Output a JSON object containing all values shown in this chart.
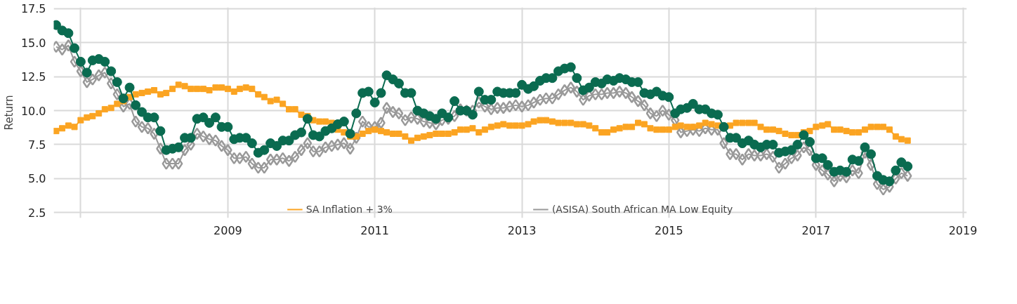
{
  "chart_data": {
    "type": "line",
    "ylabel": "Return",
    "x": [
      "2006-09",
      "2006-10",
      "2006-11",
      "2006-12",
      "2007-01",
      "2007-02",
      "2007-03",
      "2007-04",
      "2007-05",
      "2007-06",
      "2007-07",
      "2007-08",
      "2007-09",
      "2007-10",
      "2007-11",
      "2007-12",
      "2008-01",
      "2008-02",
      "2008-03",
      "2008-04",
      "2008-05",
      "2008-06",
      "2008-07",
      "2008-08",
      "2008-09",
      "2008-10",
      "2008-11",
      "2008-12",
      "2009-01",
      "2009-02",
      "2009-03",
      "2009-04",
      "2009-05",
      "2009-06",
      "2009-07",
      "2009-08",
      "2009-09",
      "2009-10",
      "2009-11",
      "2009-12",
      "2010-01",
      "2010-02",
      "2010-03",
      "2010-04",
      "2010-05",
      "2010-06",
      "2010-07",
      "2010-08",
      "2010-09",
      "2010-10",
      "2010-11",
      "2010-12",
      "2011-01",
      "2011-02",
      "2011-03",
      "2011-04",
      "2011-05",
      "2011-06",
      "2011-07",
      "2011-08",
      "2011-09",
      "2011-10",
      "2011-11",
      "2011-12",
      "2012-01",
      "2012-02",
      "2012-03",
      "2012-04",
      "2012-05",
      "2012-06",
      "2012-07",
      "2012-08",
      "2012-09",
      "2012-10",
      "2012-11",
      "2012-12",
      "2013-01",
      "2013-02",
      "2013-03",
      "2013-04",
      "2013-05",
      "2013-06",
      "2013-07",
      "2013-08",
      "2013-09",
      "2013-10",
      "2013-11",
      "2013-12",
      "2014-01",
      "2014-02",
      "2014-03",
      "2014-04",
      "2014-05",
      "2014-06",
      "2014-07",
      "2014-08",
      "2014-09",
      "2014-10",
      "2014-11",
      "2014-12",
      "2015-01",
      "2015-02",
      "2015-03",
      "2015-04",
      "2015-05",
      "2015-06",
      "2015-07",
      "2015-08",
      "2015-09",
      "2015-10",
      "2015-11",
      "2015-12",
      "2016-01",
      "2016-02",
      "2016-03",
      "2016-04",
      "2016-05",
      "2016-06",
      "2016-07",
      "2016-08",
      "2016-09",
      "2016-10",
      "2016-11",
      "2016-12",
      "2017-01",
      "2017-02",
      "2017-03",
      "2017-04",
      "2017-05",
      "2017-06",
      "2017-07",
      "2017-08",
      "2017-09",
      "2017-10",
      "2017-11",
      "2017-12",
      "2018-01",
      "2018-02",
      "2018-03",
      "2018-04"
    ],
    "xlim": [
      "2006-08-20",
      "2019-01-20"
    ],
    "xticks": [
      {
        "value": "2007-01-01",
        "label": null
      },
      {
        "value": "2009-01-01",
        "label": "2009"
      },
      {
        "value": "2011-01-01",
        "label": "2011"
      },
      {
        "value": "2013-01-01",
        "label": "2013"
      },
      {
        "value": "2015-01-01",
        "label": "2015"
      },
      {
        "value": "2017-01-01",
        "label": "2017"
      },
      {
        "value": "2019-01-01",
        "label": "2019"
      }
    ],
    "ylim": [
      2.1,
      17.6
    ],
    "yticks": [
      {
        "value": 2.5,
        "label": "2.5"
      },
      {
        "value": 5,
        "label": "5.0"
      },
      {
        "value": 7.5,
        "label": "7.5"
      },
      {
        "value": 10,
        "label": "10.0"
      },
      {
        "value": 12.5,
        "label": "12.5"
      },
      {
        "value": 15,
        "label": "15.0"
      },
      {
        "value": 17.5,
        "label": "17.5"
      }
    ],
    "grid": true,
    "legend": "bottom",
    "series": [
      {
        "color": "#0a6b50",
        "marker": "circle",
        "values": [
          16.3,
          15.9,
          15.7,
          14.6,
          13.6,
          12.8,
          13.7,
          13.8,
          13.6,
          12.9,
          12.1,
          10.9,
          11.7,
          10.4,
          9.9,
          9.5,
          9.5,
          8.5,
          7.1,
          7.2,
          7.3,
          8.0,
          8.0,
          9.4,
          9.5,
          9.1,
          9.5,
          8.8,
          8.8,
          7.9,
          8.0,
          8.0,
          7.6,
          6.9,
          7.1,
          7.6,
          7.4,
          7.8,
          7.8,
          8.2,
          8.4,
          9.4,
          8.2,
          8.1,
          8.5,
          8.7,
          9.0,
          9.2,
          8.3,
          9.8,
          11.3,
          11.4,
          10.6,
          11.3,
          12.6,
          12.3,
          12.0,
          11.3,
          11.3,
          10.0,
          9.8,
          9.6,
          9.4,
          9.8,
          9.5,
          10.7,
          10.0,
          10.0,
          9.7,
          11.4,
          10.8,
          10.8,
          11.4,
          11.3,
          11.3,
          11.3,
          11.9,
          11.6,
          11.8,
          12.2,
          12.4,
          12.4,
          12.9,
          13.1,
          13.2,
          12.4,
          11.5,
          11.7,
          12.1,
          12.0,
          12.3,
          12.2,
          12.4,
          12.3,
          12.1,
          12.1,
          11.3,
          11.2,
          11.4,
          11.1,
          11.0,
          9.8,
          10.1,
          10.2,
          10.5,
          10.1,
          10.1,
          9.8,
          9.7,
          8.8,
          8.0,
          8.0,
          7.6,
          7.8,
          7.5,
          7.3,
          7.5,
          7.5,
          6.9,
          7.0,
          7.1,
          7.5,
          8.2,
          7.7,
          6.5,
          6.5,
          6.0,
          5.5,
          5.6,
          5.5,
          6.4,
          6.3,
          7.3,
          6.8,
          5.2,
          4.9,
          4.8,
          5.6,
          6.2,
          5.9
        ]
      },
      {
        "name": "SA Inflation + 3%",
        "color": "#fba422",
        "marker": "square",
        "values": [
          8.5,
          8.7,
          8.9,
          8.8,
          9.3,
          9.5,
          9.6,
          9.8,
          10.1,
          10.2,
          10.5,
          10.7,
          11.0,
          11.2,
          11.3,
          11.4,
          11.5,
          11.2,
          11.3,
          11.6,
          11.9,
          11.8,
          11.6,
          11.6,
          11.6,
          11.5,
          11.7,
          11.7,
          11.6,
          11.4,
          11.6,
          11.7,
          11.6,
          11.2,
          11.0,
          10.7,
          10.8,
          10.5,
          10.1,
          10.1,
          9.7,
          9.6,
          9.3,
          9.2,
          9.2,
          9.1,
          8.6,
          8.4,
          8.1,
          8.1,
          8.3,
          8.5,
          8.6,
          8.5,
          8.4,
          8.3,
          8.3,
          8.1,
          7.8,
          8.0,
          8.1,
          8.2,
          8.3,
          8.3,
          8.3,
          8.4,
          8.6,
          8.6,
          8.7,
          8.4,
          8.6,
          8.8,
          8.9,
          9.0,
          8.9,
          8.9,
          8.9,
          9.0,
          9.2,
          9.3,
          9.3,
          9.2,
          9.1,
          9.1,
          9.1,
          9.0,
          9.0,
          8.9,
          8.7,
          8.4,
          8.4,
          8.6,
          8.7,
          8.8,
          8.8,
          9.1,
          9.0,
          8.7,
          8.6,
          8.6,
          8.6,
          8.8,
          8.9,
          8.8,
          8.8,
          8.9,
          9.1,
          9.0,
          8.9,
          8.8,
          8.9,
          9.1,
          9.1,
          9.1,
          9.1,
          8.8,
          8.6,
          8.6,
          8.5,
          8.3,
          8.2,
          8.2,
          8.4,
          8.5,
          8.8,
          8.9,
          9.0,
          8.6,
          8.6,
          8.5,
          8.4,
          8.4,
          8.6,
          8.8,
          8.8,
          8.8,
          8.6,
          8.1,
          7.9,
          7.8
        ]
      },
      {
        "name": "(ASISA) South African MA Low Equity",
        "color": "#999999",
        "marker": "diamond",
        "values": [
          14.7,
          14.5,
          14.8,
          13.6,
          12.9,
          12.1,
          12.3,
          12.6,
          12.8,
          12.0,
          11.2,
          10.3,
          10.5,
          9.2,
          8.8,
          8.7,
          8.3,
          7.2,
          6.1,
          6.1,
          6.1,
          7.1,
          7.5,
          8.3,
          8.1,
          7.9,
          7.8,
          7.4,
          7.1,
          6.5,
          6.5,
          6.6,
          6.1,
          5.8,
          5.8,
          6.4,
          6.4,
          6.5,
          6.3,
          6.6,
          7.1,
          7.6,
          7.0,
          7.0,
          7.3,
          7.4,
          7.5,
          7.6,
          7.2,
          8.0,
          9.2,
          8.8,
          8.8,
          9.1,
          10.2,
          9.9,
          9.8,
          9.3,
          9.5,
          9.4,
          9.2,
          9.1,
          9.0,
          9.3,
          9.4,
          9.6,
          10.1,
          10.0,
          10.0,
          10.6,
          10.3,
          10.1,
          10.2,
          10.2,
          10.3,
          10.4,
          10.3,
          10.4,
          10.6,
          10.8,
          10.9,
          10.9,
          11.2,
          11.5,
          11.7,
          11.4,
          10.8,
          11.1,
          11.2,
          11.2,
          11.3,
          11.3,
          11.4,
          11.3,
          11.0,
          10.7,
          10.4,
          9.8,
          9.6,
          10.0,
          9.7,
          9.3,
          8.4,
          8.5,
          8.6,
          8.5,
          8.7,
          8.6,
          8.6,
          7.6,
          6.8,
          6.8,
          6.4,
          6.8,
          6.7,
          6.7,
          6.8,
          6.6,
          5.8,
          6.1,
          6.5,
          6.7,
          7.3,
          7.1,
          6.0,
          5.6,
          5.3,
          4.8,
          5.2,
          5.1,
          5.6,
          5.4,
          6.9,
          6.0,
          4.6,
          4.2,
          4.4,
          5.0,
          5.4,
          5.2
        ]
      }
    ]
  }
}
